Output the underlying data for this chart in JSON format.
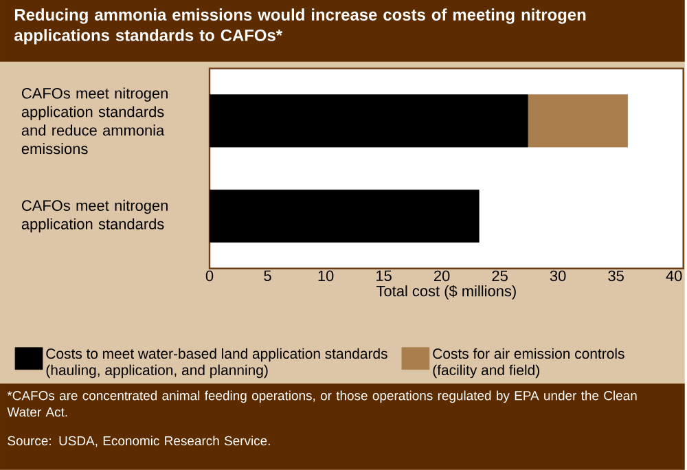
{
  "chart_data": {
    "type": "bar",
    "orientation": "horizontal",
    "stacked": true,
    "title": "Reducing ammonia emissions would increase costs of meeting nitrogen applications standards to CAFOs*",
    "categories": [
      "CAFOs meet nitrogen application standards and reduce ammonia emissions",
      "CAFOs meet nitrogen application standards"
    ],
    "series": [
      {
        "name": "Costs to meet water-based land application standards (hauling, application, and planning)",
        "color": "#000000",
        "values": [
          27.4,
          23.2
        ]
      },
      {
        "name": "Costs for air emission controls (facility and field)",
        "color": "#a97e4c",
        "values": [
          8.6,
          null
        ]
      }
    ],
    "xlabel": "Total cost ($ millions)",
    "xlim": [
      0,
      40.8
    ],
    "xticks": [
      0,
      5,
      10,
      15,
      20,
      25,
      30,
      35,
      40
    ],
    "legend": "bottom",
    "annotations": [
      "*CAFOs are concentrated animal feeding operations, or those operations regulated by EPA under the Clean Water Act.",
      "Source: USDA, Economic Research Service."
    ]
  }
}
